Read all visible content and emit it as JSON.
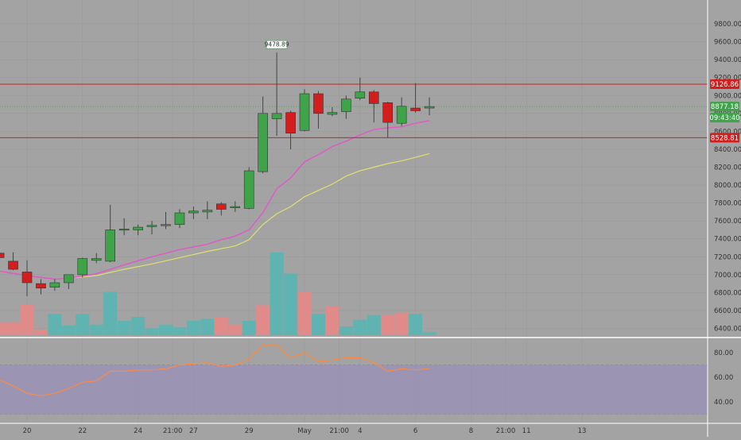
{
  "chart_data": {
    "type": "candlestick",
    "x_unit": "day",
    "price_axis": {
      "ticks": [
        6400,
        6600,
        6800,
        7000,
        7200,
        7400,
        7600,
        7800,
        8000,
        8200,
        8400,
        8600,
        8800,
        9000,
        9200,
        9400,
        9600,
        9800
      ],
      "tick_labels": [
        "6400.00",
        "6600.00",
        "6800.00",
        "7000.00",
        "7200.00",
        "7400.00",
        "7600.00",
        "7800.00",
        "8000.00",
        "8200.00",
        "8400.00",
        "8600.00",
        "8800.00",
        "9000.00",
        "9200.00",
        "9400.00",
        "9600.00",
        "9800.00"
      ]
    },
    "x_ticks": [
      {
        "x": 19.5,
        "label": "20"
      },
      {
        "x": 21.5,
        "label": "22"
      },
      {
        "x": 23.5,
        "label": "24"
      },
      {
        "x": 24.75,
        "label": "21:00"
      },
      {
        "x": 25.5,
        "label": "27"
      },
      {
        "x": 27.5,
        "label": "29"
      },
      {
        "x": 29.5,
        "label": "May"
      },
      {
        "x": 30.75,
        "label": "21:00"
      },
      {
        "x": 31.5,
        "label": "4"
      },
      {
        "x": 33.5,
        "label": "6"
      },
      {
        "x": 35.5,
        "label": "8"
      },
      {
        "x": 36.75,
        "label": "21:00"
      },
      {
        "x": 37.5,
        "label": "11"
      },
      {
        "x": 39.5,
        "label": "13"
      }
    ],
    "candles": [
      {
        "x": 18.5,
        "open": 7240,
        "high": 7290,
        "low": 7190,
        "close": 7190
      },
      {
        "x": 19.0,
        "open": 7150,
        "high": 7250,
        "low": 7050,
        "close": 7060
      },
      {
        "x": 19.5,
        "open": 7030,
        "high": 7160,
        "low": 6760,
        "close": 6910
      },
      {
        "x": 20.0,
        "open": 6900,
        "high": 6950,
        "low": 6780,
        "close": 6850
      },
      {
        "x": 20.5,
        "open": 6860,
        "high": 6950,
        "low": 6820,
        "close": 6910
      },
      {
        "x": 21.0,
        "open": 6910,
        "high": 7000,
        "low": 6840,
        "close": 7000
      },
      {
        "x": 21.5,
        "open": 7000,
        "high": 7190,
        "low": 6970,
        "close": 7180
      },
      {
        "x": 22.0,
        "open": 7160,
        "high": 7240,
        "low": 7130,
        "close": 7180
      },
      {
        "x": 22.5,
        "open": 7150,
        "high": 7780,
        "low": 7140,
        "close": 7500
      },
      {
        "x": 23.0,
        "open": 7500,
        "high": 7630,
        "low": 7440,
        "close": 7510
      },
      {
        "x": 23.5,
        "open": 7500,
        "high": 7560,
        "low": 7440,
        "close": 7530
      },
      {
        "x": 24.0,
        "open": 7540,
        "high": 7600,
        "low": 7450,
        "close": 7550
      },
      {
        "x": 24.5,
        "open": 7550,
        "high": 7700,
        "low": 7510,
        "close": 7560
      },
      {
        "x": 25.0,
        "open": 7560,
        "high": 7730,
        "low": 7520,
        "close": 7690
      },
      {
        "x": 25.5,
        "open": 7690,
        "high": 7760,
        "low": 7620,
        "close": 7710
      },
      {
        "x": 26.0,
        "open": 7700,
        "high": 7820,
        "low": 7620,
        "close": 7720
      },
      {
        "x": 26.5,
        "open": 7790,
        "high": 7810,
        "low": 7660,
        "close": 7730
      },
      {
        "x": 27.0,
        "open": 7750,
        "high": 7820,
        "low": 7700,
        "close": 7760
      },
      {
        "x": 27.5,
        "open": 7740,
        "high": 8200,
        "low": 7730,
        "close": 8160
      },
      {
        "x": 28.0,
        "open": 8150,
        "high": 8990,
        "low": 8130,
        "close": 8800
      },
      {
        "x": 28.5,
        "open": 8740,
        "high": 9480,
        "low": 8550,
        "close": 8800
      },
      {
        "x": 29.0,
        "open": 8810,
        "high": 8830,
        "low": 8400,
        "close": 8580
      },
      {
        "x": 29.5,
        "open": 8610,
        "high": 9070,
        "low": 8600,
        "close": 9020
      },
      {
        "x": 30.0,
        "open": 9020,
        "high": 9050,
        "low": 8630,
        "close": 8800
      },
      {
        "x": 30.5,
        "open": 8790,
        "high": 8870,
        "low": 8770,
        "close": 8810
      },
      {
        "x": 31.0,
        "open": 8820,
        "high": 9000,
        "low": 8740,
        "close": 8960
      },
      {
        "x": 31.5,
        "open": 8970,
        "high": 9200,
        "low": 8950,
        "close": 9040
      },
      {
        "x": 32.0,
        "open": 9040,
        "high": 9060,
        "low": 8700,
        "close": 8910
      },
      {
        "x": 32.5,
        "open": 8920,
        "high": 8930,
        "low": 8530,
        "close": 8700
      },
      {
        "x": 33.0,
        "open": 8690,
        "high": 8980,
        "low": 8660,
        "close": 8880
      },
      {
        "x": 33.5,
        "open": 8860,
        "high": 9140,
        "low": 8810,
        "close": 8830
      },
      {
        "x": 34.0,
        "open": 8860,
        "high": 8980,
        "low": 8780,
        "close": 8877.18
      }
    ],
    "volume": [
      {
        "x": 18.5,
        "v": 0.13,
        "up": false
      },
      {
        "x": 19.0,
        "v": 0.13,
        "up": false
      },
      {
        "x": 19.5,
        "v": 0.32,
        "up": false
      },
      {
        "x": 20.0,
        "v": 0.06,
        "up": false
      },
      {
        "x": 20.5,
        "v": 0.22,
        "up": true
      },
      {
        "x": 21.0,
        "v": 0.1,
        "up": true
      },
      {
        "x": 21.5,
        "v": 0.22,
        "up": true
      },
      {
        "x": 22.0,
        "v": 0.11,
        "up": true
      },
      {
        "x": 22.5,
        "v": 0.45,
        "up": true
      },
      {
        "x": 23.0,
        "v": 0.15,
        "up": true
      },
      {
        "x": 23.5,
        "v": 0.19,
        "up": true
      },
      {
        "x": 24.0,
        "v": 0.07,
        "up": true
      },
      {
        "x": 24.5,
        "v": 0.11,
        "up": true
      },
      {
        "x": 25.0,
        "v": 0.08,
        "up": true
      },
      {
        "x": 25.5,
        "v": 0.15,
        "up": true
      },
      {
        "x": 26.0,
        "v": 0.17,
        "up": true
      },
      {
        "x": 26.5,
        "v": 0.19,
        "up": false
      },
      {
        "x": 27.0,
        "v": 0.11,
        "up": false
      },
      {
        "x": 27.5,
        "v": 0.15,
        "up": true
      },
      {
        "x": 28.0,
        "v": 0.31,
        "up": false
      },
      {
        "x": 28.5,
        "v": 0.86,
        "up": true
      },
      {
        "x": 29.0,
        "v": 0.64,
        "up": true
      },
      {
        "x": 29.5,
        "v": 0.45,
        "up": false
      },
      {
        "x": 30.0,
        "v": 0.22,
        "up": true
      },
      {
        "x": 30.5,
        "v": 0.3,
        "up": false
      },
      {
        "x": 31.0,
        "v": 0.09,
        "up": true
      },
      {
        "x": 31.5,
        "v": 0.16,
        "up": true
      },
      {
        "x": 32.0,
        "v": 0.21,
        "up": true
      },
      {
        "x": 32.5,
        "v": 0.21,
        "up": false
      },
      {
        "x": 33.0,
        "v": 0.23,
        "up": false
      },
      {
        "x": 33.5,
        "v": 0.22,
        "up": true
      },
      {
        "x": 34.0,
        "v": 0.03,
        "up": true
      }
    ],
    "ma_fast": [
      [
        18.5,
        7040
      ],
      [
        19.5,
        6990
      ],
      [
        20.5,
        6950
      ],
      [
        21.0,
        6960
      ],
      [
        22.0,
        7010
      ],
      [
        23.0,
        7110
      ],
      [
        24.0,
        7200
      ],
      [
        25.0,
        7280
      ],
      [
        26.0,
        7340
      ],
      [
        26.5,
        7390
      ],
      [
        27.0,
        7430
      ],
      [
        27.5,
        7500
      ],
      [
        28.0,
        7690
      ],
      [
        28.5,
        7960
      ],
      [
        29.0,
        8080
      ],
      [
        29.5,
        8260
      ],
      [
        30.0,
        8340
      ],
      [
        30.5,
        8430
      ],
      [
        31.0,
        8490
      ],
      [
        31.5,
        8560
      ],
      [
        32.0,
        8620
      ],
      [
        32.5,
        8640
      ],
      [
        33.0,
        8650
      ],
      [
        33.5,
        8690
      ],
      [
        34.0,
        8720
      ]
    ],
    "ma_slow": [
      [
        21.0,
        6960
      ],
      [
        22.0,
        6990
      ],
      [
        23.0,
        7060
      ],
      [
        24.0,
        7120
      ],
      [
        25.0,
        7190
      ],
      [
        26.0,
        7260
      ],
      [
        27.0,
        7320
      ],
      [
        27.5,
        7390
      ],
      [
        28.0,
        7560
      ],
      [
        28.5,
        7680
      ],
      [
        29.0,
        7760
      ],
      [
        29.5,
        7870
      ],
      [
        30.0,
        7940
      ],
      [
        30.5,
        8010
      ],
      [
        31.0,
        8100
      ],
      [
        31.5,
        8160
      ],
      [
        32.0,
        8200
      ],
      [
        32.5,
        8240
      ],
      [
        33.0,
        8270
      ],
      [
        33.5,
        8310
      ],
      [
        34.0,
        8350
      ]
    ],
    "h_lines": [
      {
        "price": 9126.86,
        "label": "9126.86"
      },
      {
        "price": 8528.81,
        "label": "8528.81"
      }
    ],
    "last_price": {
      "price": 8877.18,
      "label": "8877.18",
      "countdown": "09:43:40"
    },
    "high_label": {
      "x": 28.5,
      "price": 9480,
      "text": "9478.89"
    },
    "rsi_axis": {
      "ticks": [
        40,
        60,
        80
      ],
      "tick_labels": [
        "40.00",
        "60.00",
        "80.00"
      ]
    },
    "rsi_band": [
      30,
      70
    ],
    "rsi": [
      [
        18.5,
        58
      ],
      [
        19.0,
        53
      ],
      [
        19.5,
        47
      ],
      [
        20.0,
        45
      ],
      [
        20.5,
        47
      ],
      [
        21.0,
        51
      ],
      [
        21.5,
        56
      ],
      [
        22.0,
        57
      ],
      [
        22.5,
        65
      ],
      [
        23.0,
        65
      ],
      [
        23.5,
        66
      ],
      [
        24.0,
        66
      ],
      [
        24.5,
        67
      ],
      [
        25.0,
        70
      ],
      [
        25.5,
        71
      ],
      [
        26.0,
        72
      ],
      [
        26.5,
        69
      ],
      [
        27.0,
        70
      ],
      [
        27.5,
        75
      ],
      [
        28.0,
        86
      ],
      [
        28.5,
        86
      ],
      [
        29.0,
        76
      ],
      [
        29.5,
        80
      ],
      [
        30.0,
        73
      ],
      [
        30.5,
        74
      ],
      [
        31.0,
        76
      ],
      [
        31.5,
        76
      ],
      [
        32.0,
        72
      ],
      [
        32.5,
        65
      ],
      [
        33.0,
        67
      ],
      [
        33.5,
        66
      ],
      [
        34.0,
        67
      ]
    ]
  },
  "colors": {
    "background": "#a3a3a3",
    "axis_panel": "#a3a3a3",
    "up": "#3fa34a",
    "down": "#d41e1e",
    "wick": "#444444",
    "vol_up": "#5fb3b0",
    "vol_down": "#e08a8a",
    "ma_fast": "#e256c8",
    "ma_slow": "#e0e070",
    "rsi_line": "#ff8a3d",
    "rsi_band": "#9a8fb8",
    "hline": "#d41e1e",
    "last_line": "#3fa34a",
    "grid": "#9a9a9a",
    "axis_text": "#333333",
    "separator": "#ffffff"
  }
}
